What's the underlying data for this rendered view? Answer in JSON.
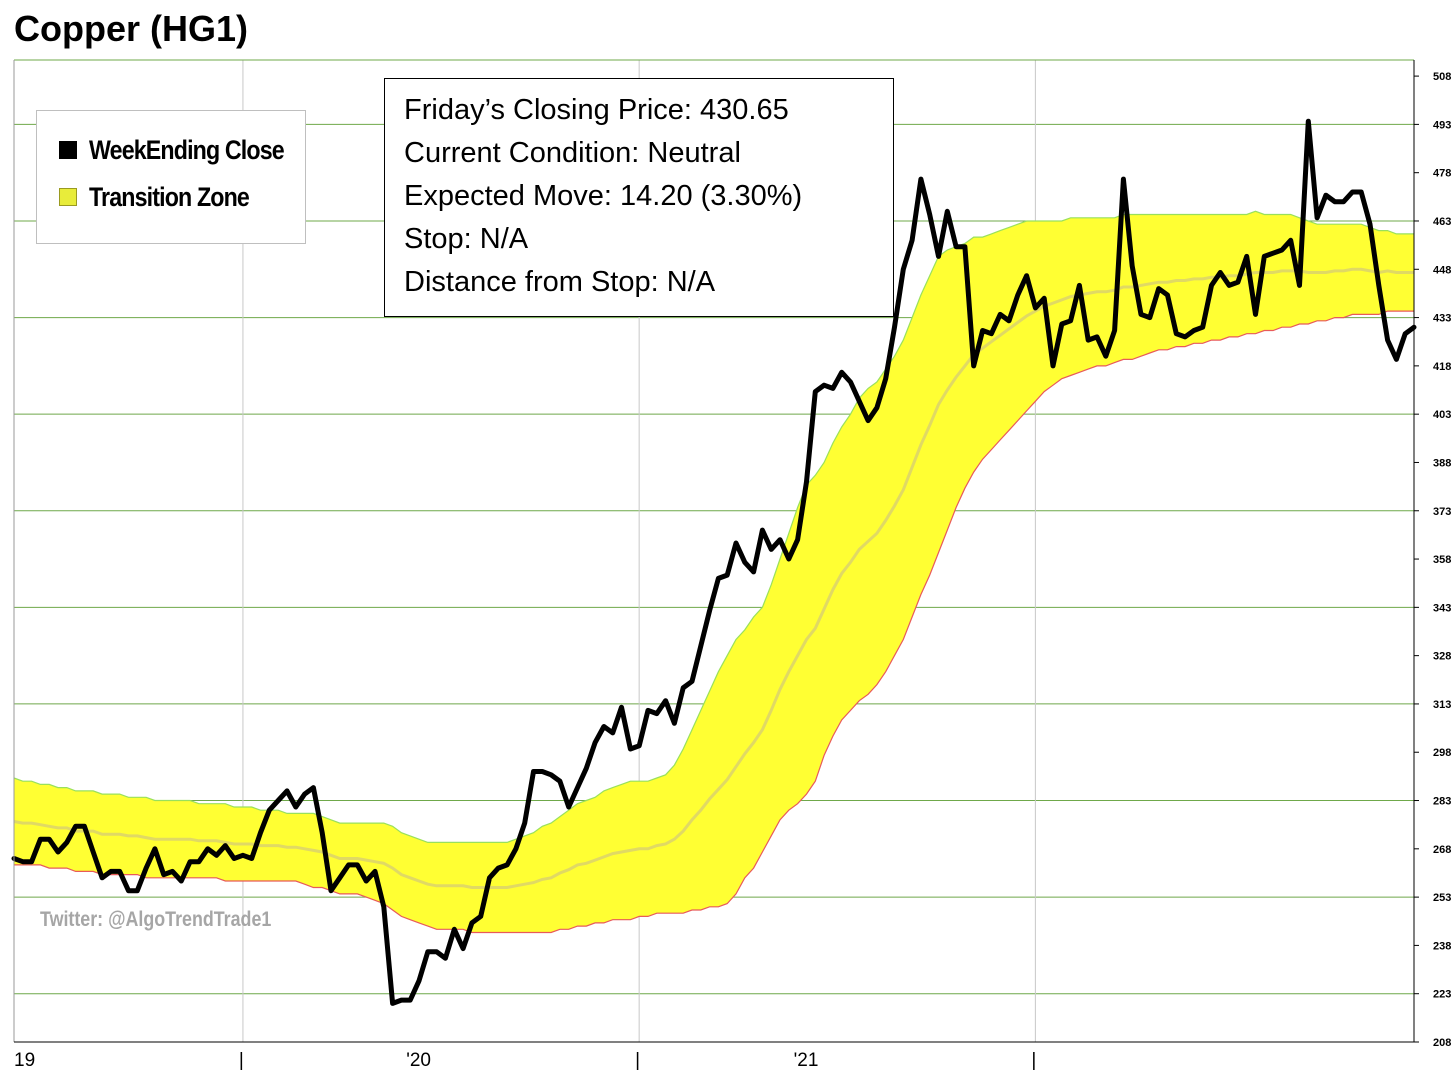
{
  "title": "Copper (HG1)",
  "legend": {
    "items": [
      {
        "label": "WeekEnding Close",
        "color": "#000000"
      },
      {
        "label": "Transition Zone",
        "color": "#e8ec3a"
      }
    ]
  },
  "info_box": {
    "lines": [
      "Friday’s Closing Price: 430.65",
      "Current Condition: Neutral",
      "Expected Move: 14.20 (3.30%)",
      "Stop: N/A",
      "Distance from Stop: N/A"
    ]
  },
  "watermark": "Twitter: @AlgoTrendTrade1",
  "colors": {
    "close_line": "#000000",
    "zone_fill": "#ffff33",
    "zone_upper_edge": "#99e05c",
    "zone_lower_edge": "#e85a5a",
    "zone_mid": "#d8d070",
    "grid": "#6fa84a"
  },
  "chart_data": {
    "type": "line",
    "title": "Copper (HG1)",
    "xlabel": "",
    "ylabel": "",
    "ylim": [
      208,
      513
    ],
    "y_ticks": [
      "208",
      "223",
      "238",
      "253",
      "268",
      "283",
      "298",
      "313",
      "328",
      "343",
      "358",
      "373",
      "388",
      "403",
      "418",
      "433",
      "448",
      "463",
      "478",
      "493",
      "508"
    ],
    "x_tick_labels": [
      {
        "label": "19",
        "week": 0
      },
      {
        "label": "|",
        "week": 26
      },
      {
        "label": "'20",
        "week": 45
      },
      {
        "label": "|",
        "week": 71
      },
      {
        "label": "'21",
        "week": 89
      },
      {
        "label": "|",
        "week": 116
      }
    ],
    "x_separator_weeks": [
      26,
      71,
      116
    ],
    "legend_position": "top-left",
    "series": [
      {
        "name": "WeekEnding Close",
        "values": [
          265,
          264,
          264,
          271,
          271,
          267,
          270,
          275,
          275,
          267,
          259,
          261,
          261,
          255,
          255,
          262,
          268,
          260,
          261,
          258,
          264,
          264,
          268,
          266,
          269,
          265,
          266,
          265,
          273,
          280,
          283,
          286,
          281,
          285,
          287,
          273,
          255,
          259,
          263,
          263,
          258,
          261,
          250,
          220,
          221,
          221,
          227,
          236,
          236,
          234,
          243,
          237,
          245,
          247,
          259,
          262,
          263,
          268,
          276,
          292,
          292,
          291,
          289,
          281,
          287,
          293,
          301,
          306,
          304,
          312,
          299,
          300,
          311,
          310,
          314,
          307,
          318,
          320,
          331,
          342,
          352,
          353,
          363,
          357,
          354,
          367,
          361,
          364,
          358,
          364,
          382,
          410,
          412,
          411,
          416,
          413,
          407,
          401,
          405,
          414,
          430,
          448,
          457,
          476,
          465,
          452,
          466,
          455,
          455,
          418,
          429,
          428,
          434,
          432,
          440,
          446,
          436,
          439,
          418,
          431,
          432,
          443,
          426,
          427,
          421,
          429,
          476,
          449,
          434,
          433,
          442,
          440,
          428,
          427,
          429,
          430,
          443,
          447,
          443,
          444,
          452,
          434,
          452,
          453,
          454,
          457,
          443,
          494,
          464,
          471,
          469,
          469,
          472,
          472,
          462,
          443,
          426,
          420,
          428,
          430
        ]
      },
      {
        "name": "Transition Zone",
        "upper": [
          290,
          289,
          289,
          288,
          288,
          287,
          287,
          286,
          286,
          286,
          285,
          285,
          285,
          284,
          284,
          284,
          283,
          283,
          283,
          283,
          283,
          282,
          282,
          282,
          282,
          281,
          281,
          281,
          280,
          280,
          280,
          279,
          279,
          279,
          279,
          278,
          277,
          276,
          276,
          276,
          276,
          276,
          276,
          275,
          273,
          272,
          271,
          270,
          270,
          270,
          270,
          270,
          270,
          270,
          270,
          270,
          270,
          271,
          272,
          273,
          275,
          276,
          278,
          280,
          282,
          283,
          284,
          286,
          287,
          288,
          289,
          289,
          289,
          290,
          291,
          294,
          299,
          305,
          311,
          317,
          323,
          328,
          333,
          336,
          340,
          343,
          350,
          358,
          366,
          374,
          381,
          384,
          388,
          394,
          399,
          403,
          408,
          411,
          413,
          417,
          421,
          426,
          433,
          440,
          446,
          452,
          454,
          455,
          456,
          458,
          458,
          459,
          460,
          461,
          462,
          463,
          463,
          463,
          463,
          463,
          464,
          464,
          464,
          464,
          464,
          464,
          465,
          465,
          465,
          465,
          465,
          465,
          465,
          465,
          465,
          465,
          465,
          465,
          465,
          465,
          465,
          466,
          465,
          465,
          465,
          465,
          464,
          463,
          462,
          462,
          462,
          462,
          462,
          462,
          461,
          460,
          460,
          459,
          459,
          459
        ],
        "lower": [
          263,
          263,
          263,
          263,
          262,
          262,
          262,
          261,
          261,
          261,
          260,
          260,
          260,
          260,
          260,
          259,
          259,
          259,
          259,
          259,
          259,
          259,
          259,
          259,
          258,
          258,
          258,
          258,
          258,
          258,
          258,
          258,
          258,
          257,
          256,
          256,
          255,
          254,
          254,
          254,
          253,
          252,
          251,
          249,
          247,
          246,
          245,
          244,
          243,
          243,
          243,
          243,
          242,
          242,
          242,
          242,
          242,
          242,
          242,
          242,
          242,
          242,
          243,
          243,
          244,
          244,
          245,
          245,
          246,
          246,
          246,
          247,
          247,
          248,
          248,
          248,
          248,
          249,
          249,
          250,
          250,
          251,
          254,
          259,
          262,
          267,
          272,
          277,
          280,
          282,
          285,
          289,
          297,
          303,
          308,
          311,
          314,
          316,
          319,
          323,
          328,
          333,
          340,
          347,
          353,
          360,
          367,
          374,
          380,
          385,
          389,
          392,
          395,
          398,
          401,
          404,
          407,
          410,
          412,
          414,
          415,
          416,
          417,
          418,
          418,
          419,
          420,
          420,
          421,
          422,
          423,
          423,
          424,
          424,
          425,
          425,
          426,
          426,
          427,
          427,
          428,
          428,
          429,
          429,
          430,
          430,
          431,
          431,
          432,
          432,
          433,
          433,
          434,
          434,
          434,
          434,
          435,
          435,
          435,
          435
        ]
      }
    ]
  }
}
